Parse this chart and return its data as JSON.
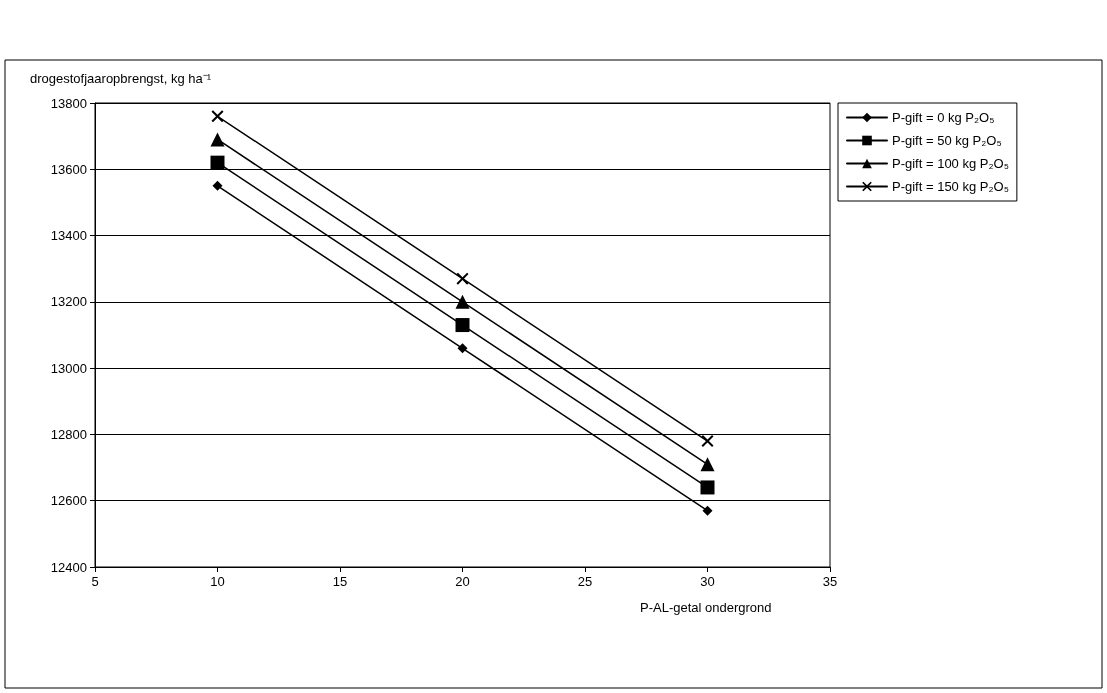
{
  "chart_data": {
    "type": "line",
    "ylabel": "drogestofjaaropbrengst, kg ha⁻¹",
    "xlabel": "P-AL-getal ondergrond",
    "x": [
      10,
      20,
      30
    ],
    "series": [
      {
        "name": "P-gift = 0 kg P₂O₅",
        "color": "#000000",
        "marker": "diamond",
        "values": [
          13550,
          13060,
          12570
        ]
      },
      {
        "name": "P-gift = 50 kg P₂O₅",
        "color": "#000000",
        "marker": "square",
        "values": [
          13620,
          13130,
          12640
        ]
      },
      {
        "name": "P-gift = 100 kg P₂O₅",
        "color": "#000000",
        "marker": "triangle",
        "values": [
          13690,
          13200,
          12710
        ]
      },
      {
        "name": "P-gift = 150 kg P₂O₅",
        "color": "#000000",
        "marker": "cross",
        "values": [
          13760,
          13270,
          12780
        ]
      }
    ],
    "xlim": [
      5,
      35
    ],
    "xticks": [
      5,
      10,
      15,
      20,
      25,
      30,
      35
    ],
    "ylim": [
      12400,
      13800
    ],
    "yticks": [
      12400,
      12600,
      12800,
      13000,
      13200,
      13400,
      13600,
      13800
    ],
    "grid": "y",
    "legend": "right",
    "line_style": "solid"
  }
}
